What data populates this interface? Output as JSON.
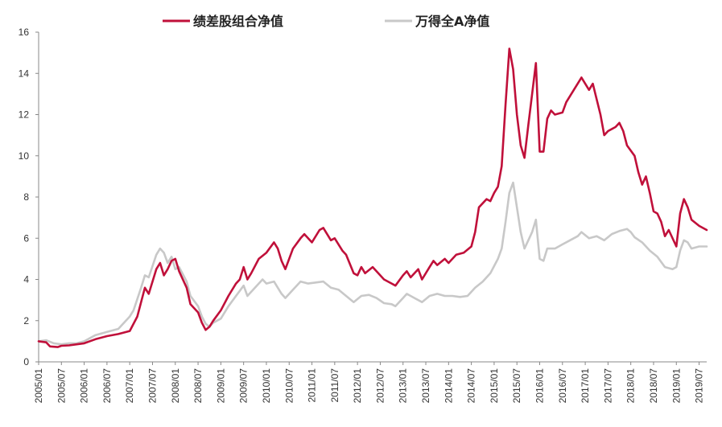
{
  "chart_data": {
    "type": "line",
    "title": "",
    "xlabel": "",
    "ylabel": "",
    "ylim": [
      0,
      16
    ],
    "yticks": [
      0,
      2,
      4,
      6,
      8,
      10,
      12,
      14,
      16
    ],
    "xlim": [
      "2005/01",
      "2019/09"
    ],
    "xticks": [
      "2005/01",
      "2005/07",
      "2006/01",
      "2006/07",
      "2007/01",
      "2007/07",
      "2008/01",
      "2008/07",
      "2009/01",
      "2009/07",
      "2010/01",
      "2010/07",
      "2011/01",
      "2011/07",
      "2012/01",
      "2012/07",
      "2013/01",
      "2013/07",
      "2014/01",
      "2014/07",
      "2015/01",
      "2015/07",
      "2016/01",
      "2016/07",
      "2017/01",
      "2017/07",
      "2018/01",
      "2018/07",
      "2019/01",
      "2019/07"
    ],
    "grid": false,
    "legend": "top-center",
    "series": [
      {
        "name": "绩差股组合净值",
        "color": "#c0103a",
        "points": [
          [
            "2005/01",
            1.0
          ],
          [
            "2005/03",
            0.95
          ],
          [
            "2005/04",
            0.75
          ],
          [
            "2005/06",
            0.72
          ],
          [
            "2005/07",
            0.78
          ],
          [
            "2005/09",
            0.8
          ],
          [
            "2005/11",
            0.85
          ],
          [
            "2006/01",
            0.9
          ],
          [
            "2006/04",
            1.1
          ],
          [
            "2006/07",
            1.25
          ],
          [
            "2006/10",
            1.35
          ],
          [
            "2007/01",
            1.5
          ],
          [
            "2007/03",
            2.2
          ],
          [
            "2007/05",
            3.6
          ],
          [
            "2007/06",
            3.3
          ],
          [
            "2007/08",
            4.5
          ],
          [
            "2007/09",
            4.8
          ],
          [
            "2007/10",
            4.2
          ],
          [
            "2007/11",
            4.5
          ],
          [
            "2007/12",
            4.9
          ],
          [
            "2008/01",
            5.0
          ],
          [
            "2008/02",
            4.4
          ],
          [
            "2008/04",
            3.6
          ],
          [
            "2008/05",
            2.8
          ],
          [
            "2008/07",
            2.4
          ],
          [
            "2008/08",
            1.9
          ],
          [
            "2008/09",
            1.55
          ],
          [
            "2008/10",
            1.7
          ],
          [
            "2008/11",
            2.0
          ],
          [
            "2009/01",
            2.5
          ],
          [
            "2009/03",
            3.2
          ],
          [
            "2009/05",
            3.8
          ],
          [
            "2009/06",
            4.0
          ],
          [
            "2009/07",
            4.6
          ],
          [
            "2009/08",
            4.0
          ],
          [
            "2009/09",
            4.3
          ],
          [
            "2009/11",
            5.0
          ],
          [
            "2010/01",
            5.3
          ],
          [
            "2010/03",
            5.8
          ],
          [
            "2010/04",
            5.5
          ],
          [
            "2010/05",
            4.9
          ],
          [
            "2010/06",
            4.5
          ],
          [
            "2010/08",
            5.5
          ],
          [
            "2010/10",
            6.0
          ],
          [
            "2010/11",
            6.2
          ],
          [
            "2011/01",
            5.8
          ],
          [
            "2011/03",
            6.4
          ],
          [
            "2011/04",
            6.5
          ],
          [
            "2011/06",
            5.9
          ],
          [
            "2011/07",
            6.0
          ],
          [
            "2011/09",
            5.4
          ],
          [
            "2011/10",
            5.2
          ],
          [
            "2011/12",
            4.3
          ],
          [
            "2012/01",
            4.2
          ],
          [
            "2012/02",
            4.6
          ],
          [
            "2012/03",
            4.3
          ],
          [
            "2012/05",
            4.6
          ],
          [
            "2012/06",
            4.4
          ],
          [
            "2012/08",
            4.0
          ],
          [
            "2012/10",
            3.8
          ],
          [
            "2012/11",
            3.7
          ],
          [
            "2013/01",
            4.2
          ],
          [
            "2013/02",
            4.4
          ],
          [
            "2013/03",
            4.1
          ],
          [
            "2013/05",
            4.5
          ],
          [
            "2013/06",
            4.0
          ],
          [
            "2013/08",
            4.6
          ],
          [
            "2013/09",
            4.9
          ],
          [
            "2013/10",
            4.7
          ],
          [
            "2013/12",
            5.0
          ],
          [
            "2014/01",
            4.8
          ],
          [
            "2014/03",
            5.2
          ],
          [
            "2014/05",
            5.3
          ],
          [
            "2014/07",
            5.6
          ],
          [
            "2014/08",
            6.3
          ],
          [
            "2014/09",
            7.5
          ],
          [
            "2014/10",
            7.7
          ],
          [
            "2014/11",
            7.9
          ],
          [
            "2014/12",
            7.8
          ],
          [
            "2015/01",
            8.2
          ],
          [
            "2015/02",
            8.5
          ],
          [
            "2015/03",
            9.5
          ],
          [
            "2015/04",
            12.5
          ],
          [
            "2015/05",
            15.2
          ],
          [
            "2015/06",
            14.2
          ],
          [
            "2015/07",
            12.0
          ],
          [
            "2015/08",
            10.5
          ],
          [
            "2015/09",
            9.9
          ],
          [
            "2015/10",
            11.5
          ],
          [
            "2015/11",
            13.0
          ],
          [
            "2015/12",
            14.5
          ],
          [
            "2016/01",
            10.2
          ],
          [
            "2016/02",
            10.2
          ],
          [
            "2016/03",
            11.8
          ],
          [
            "2016/04",
            12.2
          ],
          [
            "2016/05",
            12.0
          ],
          [
            "2016/07",
            12.1
          ],
          [
            "2016/08",
            12.6
          ],
          [
            "2016/10",
            13.2
          ],
          [
            "2016/12",
            13.8
          ],
          [
            "2017/02",
            13.2
          ],
          [
            "2017/03",
            13.5
          ],
          [
            "2017/05",
            12.0
          ],
          [
            "2017/06",
            11.0
          ],
          [
            "2017/07",
            11.2
          ],
          [
            "2017/09",
            11.4
          ],
          [
            "2017/10",
            11.6
          ],
          [
            "2017/11",
            11.2
          ],
          [
            "2017/12",
            10.5
          ],
          [
            "2018/02",
            10.0
          ],
          [
            "2018/03",
            9.2
          ],
          [
            "2018/04",
            8.6
          ],
          [
            "2018/05",
            9.0
          ],
          [
            "2018/06",
            8.2
          ],
          [
            "2018/07",
            7.3
          ],
          [
            "2018/08",
            7.2
          ],
          [
            "2018/09",
            6.8
          ],
          [
            "2018/10",
            6.1
          ],
          [
            "2018/11",
            6.4
          ],
          [
            "2019/01",
            5.6
          ],
          [
            "2019/02",
            7.2
          ],
          [
            "2019/03",
            7.9
          ],
          [
            "2019/04",
            7.5
          ],
          [
            "2019/05",
            6.9
          ],
          [
            "2019/07",
            6.6
          ],
          [
            "2019/09",
            6.4
          ]
        ]
      },
      {
        "name": "万得全A净值",
        "color": "#c8c8c8",
        "points": [
          [
            "2005/01",
            1.0
          ],
          [
            "2005/03",
            1.05
          ],
          [
            "2005/05",
            0.9
          ],
          [
            "2005/07",
            0.85
          ],
          [
            "2005/09",
            0.9
          ],
          [
            "2005/11",
            0.9
          ],
          [
            "2006/01",
            1.0
          ],
          [
            "2006/04",
            1.3
          ],
          [
            "2006/07",
            1.45
          ],
          [
            "2006/10",
            1.6
          ],
          [
            "2007/01",
            2.2
          ],
          [
            "2007/02",
            2.5
          ],
          [
            "2007/04",
            3.6
          ],
          [
            "2007/05",
            4.2
          ],
          [
            "2007/06",
            4.1
          ],
          [
            "2007/08",
            5.2
          ],
          [
            "2007/09",
            5.5
          ],
          [
            "2007/10",
            5.3
          ],
          [
            "2007/11",
            4.8
          ],
          [
            "2007/12",
            5.1
          ],
          [
            "2008/01",
            4.5
          ],
          [
            "2008/02",
            4.6
          ],
          [
            "2008/04",
            3.9
          ],
          [
            "2008/05",
            3.2
          ],
          [
            "2008/07",
            2.7
          ],
          [
            "2008/08",
            2.2
          ],
          [
            "2008/09",
            1.85
          ],
          [
            "2008/10",
            1.7
          ],
          [
            "2008/11",
            1.9
          ],
          [
            "2009/01",
            2.1
          ],
          [
            "2009/03",
            2.7
          ],
          [
            "2009/05",
            3.2
          ],
          [
            "2009/07",
            3.7
          ],
          [
            "2009/08",
            3.2
          ],
          [
            "2009/10",
            3.6
          ],
          [
            "2009/12",
            4.0
          ],
          [
            "2010/01",
            3.8
          ],
          [
            "2010/03",
            3.9
          ],
          [
            "2010/05",
            3.3
          ],
          [
            "2010/06",
            3.1
          ],
          [
            "2010/08",
            3.5
          ],
          [
            "2010/10",
            3.9
          ],
          [
            "2010/12",
            3.8
          ],
          [
            "2011/02",
            3.85
          ],
          [
            "2011/04",
            3.9
          ],
          [
            "2011/06",
            3.6
          ],
          [
            "2011/08",
            3.5
          ],
          [
            "2011/10",
            3.2
          ],
          [
            "2011/12",
            2.9
          ],
          [
            "2012/02",
            3.2
          ],
          [
            "2012/04",
            3.25
          ],
          [
            "2012/06",
            3.1
          ],
          [
            "2012/08",
            2.85
          ],
          [
            "2012/10",
            2.8
          ],
          [
            "2012/11",
            2.7
          ],
          [
            "2013/01",
            3.1
          ],
          [
            "2013/02",
            3.3
          ],
          [
            "2013/04",
            3.1
          ],
          [
            "2013/06",
            2.9
          ],
          [
            "2013/08",
            3.2
          ],
          [
            "2013/10",
            3.3
          ],
          [
            "2013/12",
            3.2
          ],
          [
            "2014/02",
            3.2
          ],
          [
            "2014/04",
            3.15
          ],
          [
            "2014/06",
            3.2
          ],
          [
            "2014/08",
            3.6
          ],
          [
            "2014/10",
            3.9
          ],
          [
            "2014/12",
            4.3
          ],
          [
            "2015/02",
            5.0
          ],
          [
            "2015/03",
            5.5
          ],
          [
            "2015/04",
            6.8
          ],
          [
            "2015/05",
            8.2
          ],
          [
            "2015/06",
            8.7
          ],
          [
            "2015/07",
            7.5
          ],
          [
            "2015/08",
            6.3
          ],
          [
            "2015/09",
            5.5
          ],
          [
            "2015/10",
            5.9
          ],
          [
            "2015/11",
            6.3
          ],
          [
            "2015/12",
            6.9
          ],
          [
            "2016/01",
            5.0
          ],
          [
            "2016/02",
            4.9
          ],
          [
            "2016/03",
            5.5
          ],
          [
            "2016/05",
            5.5
          ],
          [
            "2016/07",
            5.7
          ],
          [
            "2016/09",
            5.9
          ],
          [
            "2016/11",
            6.1
          ],
          [
            "2016/12",
            6.3
          ],
          [
            "2017/02",
            6.0
          ],
          [
            "2017/04",
            6.1
          ],
          [
            "2017/06",
            5.9
          ],
          [
            "2017/08",
            6.2
          ],
          [
            "2017/10",
            6.35
          ],
          [
            "2017/12",
            6.45
          ],
          [
            "2018/01",
            6.3
          ],
          [
            "2018/02",
            6.05
          ],
          [
            "2018/04",
            5.8
          ],
          [
            "2018/06",
            5.4
          ],
          [
            "2018/08",
            5.1
          ],
          [
            "2018/10",
            4.6
          ],
          [
            "2018/12",
            4.5
          ],
          [
            "2019/01",
            4.6
          ],
          [
            "2019/02",
            5.4
          ],
          [
            "2019/03",
            5.9
          ],
          [
            "2019/04",
            5.8
          ],
          [
            "2019/05",
            5.5
          ],
          [
            "2019/07",
            5.6
          ],
          [
            "2019/09",
            5.6
          ]
        ]
      }
    ]
  }
}
